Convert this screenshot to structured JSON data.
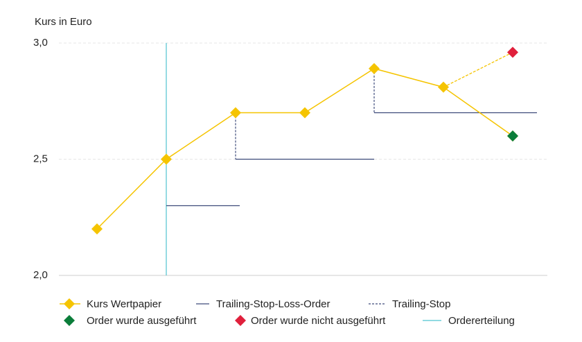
{
  "chart_data": {
    "type": "line",
    "y_label": "Kurs in Euro",
    "categories": [
      null,
      null,
      null,
      null,
      null,
      null,
      null
    ],
    "ylim": [
      2.0,
      3.0
    ],
    "yticks": [
      {
        "value": 2.0,
        "label": "2,0"
      },
      {
        "value": 2.5,
        "label": "2,5"
      },
      {
        "value": 3.0,
        "label": "3,0"
      }
    ],
    "grid": true,
    "legend": "bottom",
    "series": [
      {
        "name": "Kurs Wertpapier",
        "kind": "price",
        "color": "#f5c400",
        "values": [
          2.2,
          2.5,
          2.7,
          2.7,
          2.89,
          2.81,
          2.6
        ]
      },
      {
        "name": "Trailing-Stop-Loss-Order",
        "kind": "stop",
        "color": "#3d4a7a",
        "values": [
          null,
          2.3,
          2.5,
          2.5,
          2.7,
          2.7,
          2.7
        ]
      },
      {
        "name": "Trailing-Stop",
        "kind": "trail",
        "color": "#3d4a7a",
        "dashed": true
      },
      {
        "name": "Order wurde ausgeführt",
        "kind": "point",
        "color": "#0b7d3a",
        "values": [
          null,
          null,
          null,
          null,
          null,
          null,
          2.6
        ]
      },
      {
        "name": "Order wurde nicht ausgeführt",
        "kind": "missed",
        "color": "#e0203c",
        "values": [
          null,
          null,
          null,
          null,
          null,
          null,
          2.96
        ]
      },
      {
        "name": "Ordererteilung",
        "kind": "vline",
        "color": "#4fc3d0",
        "category": 1
      }
    ]
  }
}
